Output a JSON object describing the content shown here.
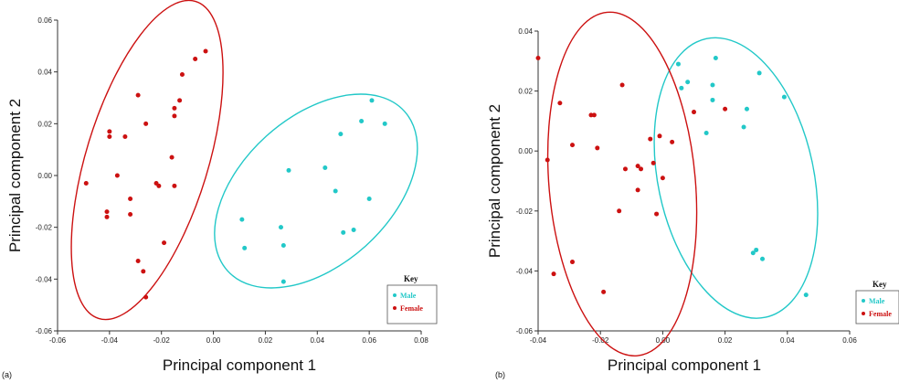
{
  "chart_data": [
    {
      "type": "scatter",
      "panel_label": "(a)",
      "xlabel": "Principal component 1",
      "ylabel": "Principal component 2",
      "xlim": [
        -0.06,
        0.08
      ],
      "ylim": [
        -0.06,
        0.06
      ],
      "xticks": [
        -0.06,
        -0.04,
        -0.02,
        0.0,
        0.02,
        0.04,
        0.06,
        0.08
      ],
      "yticks": [
        -0.06,
        -0.04,
        -0.02,
        0.0,
        0.02,
        0.04,
        0.06
      ],
      "xtick_labels": [
        "-0.06",
        "-0.04",
        "-0.02",
        "0.00",
        "0.02",
        "0.04",
        "0.06",
        "0.08"
      ],
      "ytick_labels": [
        "-0.06",
        "-0.04",
        "-0.02",
        "0.00",
        "0.02",
        "0.04",
        "0.06"
      ],
      "legend": {
        "title": "Key",
        "position": "bottom-right"
      },
      "series": [
        {
          "name": "Male",
          "color": "#22c8c8",
          "ellipse": {
            "cx": 0.0395,
            "cy": -0.006,
            "rx": 0.0285,
            "ry": 0.046,
            "angle_deg": 48
          },
          "points": [
            [
              0.011,
              -0.017
            ],
            [
              0.012,
              -0.028
            ],
            [
              0.026,
              -0.02
            ],
            [
              0.027,
              -0.027
            ],
            [
              0.027,
              -0.041
            ],
            [
              0.029,
              0.002
            ],
            [
              0.043,
              0.003
            ],
            [
              0.047,
              -0.006
            ],
            [
              0.049,
              0.016
            ],
            [
              0.05,
              -0.022
            ],
            [
              0.054,
              -0.021
            ],
            [
              0.057,
              0.021
            ],
            [
              0.06,
              -0.009
            ],
            [
              0.061,
              0.029
            ],
            [
              0.066,
              0.02
            ]
          ]
        },
        {
          "name": "Female",
          "color": "#cc1111",
          "ellipse": {
            "cx": -0.0255,
            "cy": 0.006,
            "rx": 0.0235,
            "ry": 0.064,
            "angle_deg": 17
          },
          "points": [
            [
              -0.049,
              -0.003
            ],
            [
              -0.041,
              -0.014
            ],
            [
              -0.041,
              -0.016
            ],
            [
              -0.04,
              0.015
            ],
            [
              -0.04,
              0.017
            ],
            [
              -0.037,
              0.0
            ],
            [
              -0.034,
              0.015
            ],
            [
              -0.032,
              -0.009
            ],
            [
              -0.032,
              -0.015
            ],
            [
              -0.029,
              0.031
            ],
            [
              -0.029,
              -0.033
            ],
            [
              -0.027,
              -0.037
            ],
            [
              -0.026,
              0.02
            ],
            [
              -0.026,
              -0.047
            ],
            [
              -0.022,
              -0.003
            ],
            [
              -0.021,
              -0.004
            ],
            [
              -0.019,
              -0.026
            ],
            [
              -0.016,
              0.007
            ],
            [
              -0.015,
              0.023
            ],
            [
              -0.015,
              0.026
            ],
            [
              -0.015,
              -0.004
            ],
            [
              -0.013,
              0.029
            ],
            [
              -0.012,
              0.039
            ],
            [
              -0.007,
              0.045
            ],
            [
              -0.003,
              0.048
            ]
          ]
        }
      ]
    },
    {
      "type": "scatter",
      "panel_label": "(b)",
      "xlabel": "Principal component 1",
      "ylabel": "Principal component 2",
      "xlim": [
        -0.04,
        0.06
      ],
      "ylim": [
        -0.06,
        0.04
      ],
      "xticks": [
        -0.04,
        -0.02,
        0.0,
        0.02,
        0.04,
        0.06
      ],
      "yticks": [
        -0.06,
        -0.04,
        -0.02,
        0.0,
        0.02,
        0.04
      ],
      "xtick_labels": [
        "-0.04",
        "-0.02",
        "0.00",
        "0.02",
        "0.04",
        "0.06"
      ],
      "ytick_labels": [
        "-0.06",
        "-0.04",
        "-0.02",
        "0.00",
        "0.02",
        "0.04"
      ],
      "legend": {
        "title": "Key",
        "position": "bottom-right"
      },
      "series": [
        {
          "name": "Male",
          "color": "#22c8c8",
          "ellipse": {
            "cx": 0.0235,
            "cy": -0.009,
            "rx": 0.025,
            "ry": 0.0475,
            "angle_deg": -12
          },
          "points": [
            [
              0.005,
              0.029
            ],
            [
              0.006,
              0.021
            ],
            [
              0.008,
              0.023
            ],
            [
              0.014,
              0.006
            ],
            [
              0.016,
              0.017
            ],
            [
              0.016,
              0.022
            ],
            [
              0.017,
              0.031
            ],
            [
              0.026,
              0.008
            ],
            [
              0.027,
              0.014
            ],
            [
              0.029,
              -0.034
            ],
            [
              0.03,
              -0.033
            ],
            [
              0.031,
              0.026
            ],
            [
              0.032,
              -0.036
            ],
            [
              0.039,
              0.018
            ],
            [
              0.046,
              -0.048
            ]
          ]
        },
        {
          "name": "Female",
          "color": "#cc1111",
          "ellipse": {
            "cx": -0.013,
            "cy": -0.011,
            "rx": 0.0235,
            "ry": 0.0575,
            "angle_deg": -5
          },
          "points": [
            [
              -0.04,
              0.031
            ],
            [
              -0.037,
              -0.003
            ],
            [
              -0.035,
              -0.041
            ],
            [
              -0.033,
              0.016
            ],
            [
              -0.029,
              0.002
            ],
            [
              -0.029,
              -0.037
            ],
            [
              -0.023,
              0.012
            ],
            [
              -0.022,
              0.012
            ],
            [
              -0.021,
              0.001
            ],
            [
              -0.019,
              -0.047
            ],
            [
              -0.014,
              -0.02
            ],
            [
              -0.013,
              0.022
            ],
            [
              -0.012,
              -0.006
            ],
            [
              -0.008,
              -0.005
            ],
            [
              -0.008,
              -0.013
            ],
            [
              -0.007,
              -0.006
            ],
            [
              -0.004,
              0.004
            ],
            [
              -0.003,
              -0.004
            ],
            [
              -0.002,
              -0.021
            ],
            [
              -0.001,
              0.005
            ],
            [
              0.0,
              -0.009
            ],
            [
              0.003,
              0.003
            ],
            [
              0.01,
              0.013
            ],
            [
              0.02,
              0.014
            ]
          ]
        }
      ]
    }
  ]
}
